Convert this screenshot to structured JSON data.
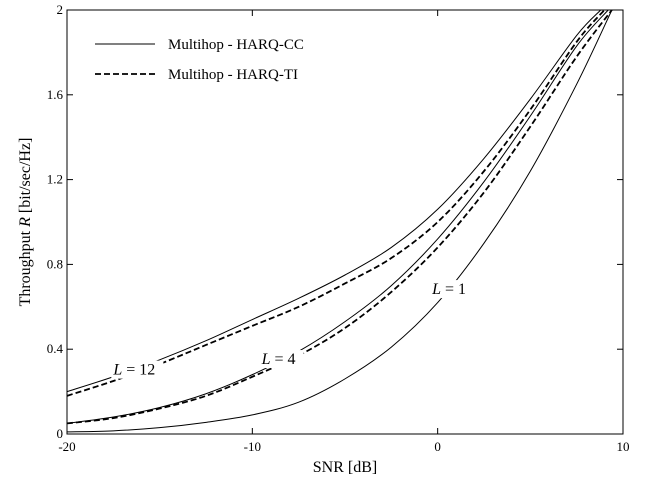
{
  "chart_data": {
    "type": "line",
    "title": "",
    "xlabel": "SNR [dB]",
    "ylabel": "Throughput R [bit/sec/Hz]",
    "ylabel_parts": {
      "pre": "Throughput ",
      "italic": "R",
      "post": " [bit/sec/Hz]"
    },
    "xlim": [
      -20,
      10
    ],
    "ylim": [
      0,
      2
    ],
    "xticks": [
      -20,
      -10,
      0,
      10
    ],
    "xtick_labels": [
      "-20",
      "-10",
      "0",
      "10"
    ],
    "yticks": [
      0,
      0.4,
      0.8,
      1.2,
      1.6,
      2
    ],
    "ytick_labels": [
      "0",
      "0.4",
      "0.8",
      "1.2",
      "1.6",
      "2"
    ],
    "grid": false,
    "legend_position": "top-left",
    "legend": [
      {
        "label": "Multihop - HARQ-CC",
        "style": "solid"
      },
      {
        "label": "Multihop - HARQ-TI",
        "style": "dashed"
      }
    ],
    "annotations": [
      {
        "label": "L = 12",
        "italic": "L",
        "rest": " = 12",
        "x": -17.5,
        "y": 0.28
      },
      {
        "label": "L = 4",
        "italic": "L",
        "rest": " = 4",
        "x": -9.5,
        "y": 0.33
      },
      {
        "label": "L = 1",
        "italic": "L",
        "rest": " = 1",
        "x": -0.3,
        "y": 0.66
      }
    ],
    "series": [
      {
        "name": "Multihop - HARQ-CC",
        "group": "L = 1",
        "style": "solid",
        "x": [
          -20,
          -17.5,
          -15,
          -12.5,
          -10,
          -7.5,
          -5,
          -2.5,
          0,
          2.5,
          5,
          7.5,
          9.4
        ],
        "y": [
          0.01,
          0.015,
          0.03,
          0.055,
          0.09,
          0.15,
          0.26,
          0.41,
          0.62,
          0.9,
          1.24,
          1.65,
          2.0
        ]
      },
      {
        "name": "Multihop - HARQ-CC",
        "group": "L = 4",
        "style": "solid",
        "x": [
          -20,
          -17.5,
          -15,
          -12.5,
          -10,
          -7.5,
          -5,
          -2.5,
          0,
          2.5,
          5,
          7.5,
          9.2
        ],
        "y": [
          0.05,
          0.08,
          0.125,
          0.19,
          0.28,
          0.39,
          0.53,
          0.7,
          0.92,
          1.19,
          1.5,
          1.83,
          2.0
        ]
      },
      {
        "name": "Multihop - HARQ-TI",
        "group": "L = 4",
        "style": "dashed",
        "x": [
          -20,
          -17.5,
          -15,
          -12.5,
          -10,
          -7.5,
          -5,
          -2.5,
          0,
          2.5,
          5,
          7.5,
          9.4
        ],
        "y": [
          0.05,
          0.075,
          0.12,
          0.18,
          0.27,
          0.37,
          0.5,
          0.67,
          0.88,
          1.14,
          1.45,
          1.78,
          2.0
        ]
      },
      {
        "name": "Multihop - HARQ-CC",
        "group": "L = 12",
        "style": "solid",
        "x": [
          -20,
          -17.5,
          -15,
          -12.5,
          -10,
          -7.5,
          -5,
          -2.5,
          0,
          2.5,
          5,
          7.5,
          8.8
        ],
        "y": [
          0.2,
          0.27,
          0.35,
          0.44,
          0.54,
          0.64,
          0.75,
          0.88,
          1.06,
          1.3,
          1.58,
          1.88,
          2.0
        ]
      },
      {
        "name": "Multihop - HARQ-TI",
        "group": "L = 12",
        "style": "dashed",
        "x": [
          -20,
          -17.5,
          -15,
          -12.5,
          -10,
          -7.5,
          -5,
          -2.5,
          0,
          2.5,
          5,
          7.5,
          9.0
        ],
        "y": [
          0.18,
          0.25,
          0.33,
          0.42,
          0.51,
          0.6,
          0.71,
          0.83,
          1.0,
          1.24,
          1.53,
          1.85,
          2.0
        ]
      }
    ]
  }
}
